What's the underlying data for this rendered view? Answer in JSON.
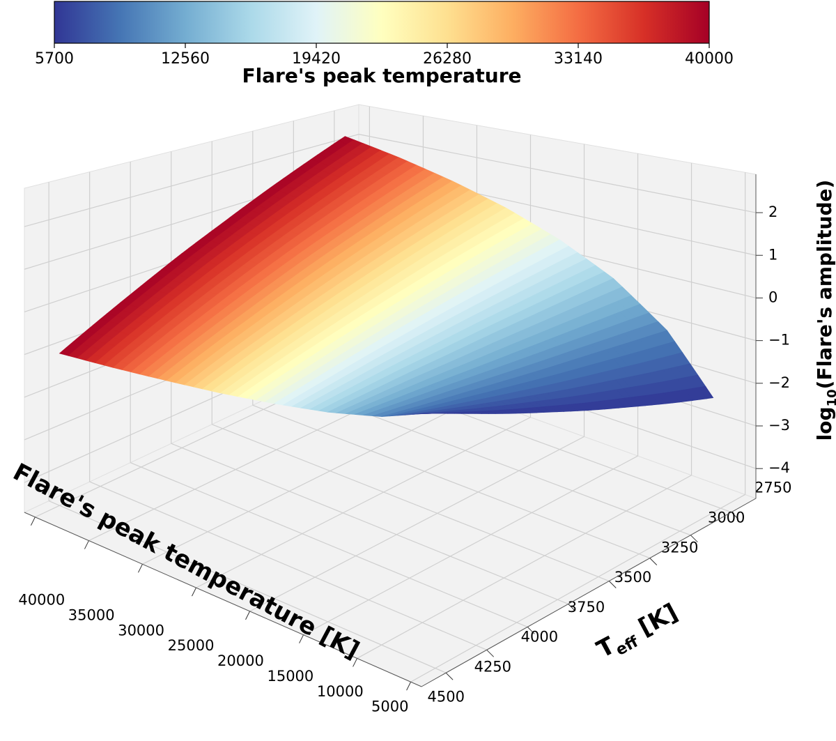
{
  "chart_data": {
    "type": "surface3d",
    "x": [
      5700,
      10000,
      15000,
      20000,
      25000,
      30000,
      35000,
      40000
    ],
    "y": [
      2750,
      3000,
      3250,
      3500,
      3750,
      4000,
      4250,
      4500
    ],
    "z": [
      [
        -2.2,
        -0.93,
        -0.01,
        0.63,
        1.14,
        1.55,
        1.9,
        2.2
      ],
      [
        -1.89,
        -0.84,
        -0.09,
        0.44,
        0.86,
        1.2,
        1.48,
        1.73
      ],
      [
        -1.57,
        -0.75,
        -0.17,
        0.25,
        0.58,
        0.84,
        1.06,
        1.26
      ],
      [
        -1.26,
        -0.67,
        -0.24,
        0.06,
        0.29,
        0.49,
        0.65,
        0.78
      ],
      [
        -0.94,
        -0.58,
        -0.32,
        -0.13,
        0.01,
        0.13,
        0.23,
        0.32
      ],
      [
        -0.63,
        -0.49,
        -0.39,
        -0.32,
        -0.27,
        -0.23,
        -0.19,
        -0.16
      ],
      [
        -0.31,
        -0.41,
        -0.47,
        -0.52,
        -0.55,
        -0.58,
        -0.61,
        -0.63
      ],
      [
        0,
        -0.32,
        -0.55,
        -0.71,
        -0.84,
        -0.94,
        -1.03,
        -1.1
      ]
    ],
    "xlabel": "Flare's peak temperature [K]",
    "ylabel": {
      "main": "T",
      "sub": "eff",
      "rest": " [K]"
    },
    "zlabel": {
      "main": "log",
      "sub": "10",
      "rest": "(Flare's amplitude)"
    },
    "xlim": [
      4000,
      41000
    ],
    "ylim": [
      2600,
      4650
    ],
    "zlim": [
      -4.7,
      2.9
    ],
    "xticks": [
      5000,
      10000,
      15000,
      20000,
      25000,
      30000,
      35000,
      40000
    ],
    "yticks": [
      2750,
      3000,
      3250,
      3500,
      3750,
      4000,
      4250,
      4500
    ],
    "zticks": [
      {
        "value": -4,
        "label": "−4"
      },
      {
        "value": -3,
        "label": "−3"
      },
      {
        "value": -2,
        "label": "−2"
      },
      {
        "value": -1,
        "label": "−1"
      },
      0,
      1,
      2
    ],
    "colorbar": {
      "label": "Flare's peak temperature",
      "clim": [
        5700,
        40000
      ],
      "ticks": [
        5700,
        12560,
        19420,
        26280,
        33140,
        40000
      ]
    },
    "colormap": [
      "#313695",
      "#4575b4",
      "#74add1",
      "#abd9e9",
      "#e0f3f8",
      "#ffffbf",
      "#fee090",
      "#fdae61",
      "#f46d43",
      "#d73027",
      "#a50026"
    ],
    "grid": true
  }
}
